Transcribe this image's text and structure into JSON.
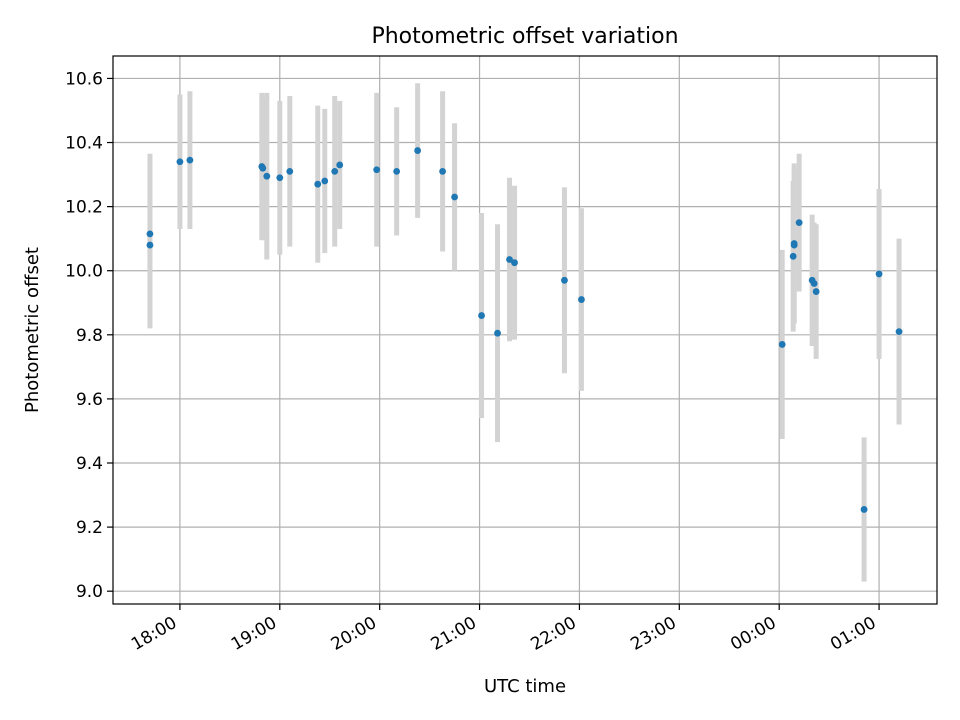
{
  "chart_data": {
    "type": "scatter",
    "title": "Photometric offset variation",
    "xlabel": "UTC time",
    "ylabel": "Photometric offset",
    "x_unit": "hours UTC",
    "xlim": [
      17.33,
      25.58
    ],
    "ylim": [
      8.96,
      10.67
    ],
    "x_ticks": [
      18,
      19,
      20,
      21,
      22,
      23,
      24,
      25
    ],
    "x_tick_labels": [
      "18:00",
      "19:00",
      "20:00",
      "21:00",
      "22:00",
      "23:00",
      "00:00",
      "01:00"
    ],
    "y_ticks": [
      9.0,
      9.2,
      9.4,
      9.6,
      9.8,
      10.0,
      10.2,
      10.4,
      10.6
    ],
    "y_tick_labels": [
      "9.0",
      "9.2",
      "9.4",
      "9.6",
      "9.8",
      "10.0",
      "10.2",
      "10.4",
      "10.6"
    ],
    "grid": true,
    "point_color": "#1f77b4",
    "errorbar_color": "#d3d3d3",
    "points": [
      {
        "x": 17.7,
        "y": 10.115,
        "err": 0.25
      },
      {
        "x": 17.7,
        "y": 10.08,
        "err": 0.26
      },
      {
        "x": 18.0,
        "y": 10.34,
        "err": 0.21
      },
      {
        "x": 18.1,
        "y": 10.345,
        "err": 0.215
      },
      {
        "x": 18.82,
        "y": 10.325,
        "err": 0.23
      },
      {
        "x": 18.83,
        "y": 10.32,
        "err": 0.22
      },
      {
        "x": 18.87,
        "y": 10.295,
        "err": 0.26
      },
      {
        "x": 19.0,
        "y": 10.29,
        "err": 0.24
      },
      {
        "x": 19.1,
        "y": 10.31,
        "err": 0.235
      },
      {
        "x": 19.38,
        "y": 10.27,
        "err": 0.245
      },
      {
        "x": 19.45,
        "y": 10.28,
        "err": 0.225
      },
      {
        "x": 19.55,
        "y": 10.31,
        "err": 0.235
      },
      {
        "x": 19.6,
        "y": 10.33,
        "err": 0.2
      },
      {
        "x": 19.97,
        "y": 10.315,
        "err": 0.24
      },
      {
        "x": 20.17,
        "y": 10.31,
        "err": 0.2
      },
      {
        "x": 20.38,
        "y": 10.375,
        "err": 0.21
      },
      {
        "x": 20.63,
        "y": 10.31,
        "err": 0.25
      },
      {
        "x": 20.75,
        "y": 10.23,
        "err": 0.23
      },
      {
        "x": 21.02,
        "y": 9.86,
        "err": 0.32
      },
      {
        "x": 21.18,
        "y": 9.805,
        "err": 0.34
      },
      {
        "x": 21.3,
        "y": 10.035,
        "err": 0.255
      },
      {
        "x": 21.35,
        "y": 10.025,
        "err": 0.24
      },
      {
        "x": 21.85,
        "y": 9.97,
        "err": 0.29
      },
      {
        "x": 22.02,
        "y": 9.91,
        "err": 0.285
      },
      {
        "x": 24.03,
        "y": 9.77,
        "err": 0.295
      },
      {
        "x": 24.15,
        "y": 10.085,
        "err": 0.25
      },
      {
        "x": 24.15,
        "y": 10.08,
        "err": 0.24
      },
      {
        "x": 24.14,
        "y": 10.045,
        "err": 0.235
      },
      {
        "x": 24.2,
        "y": 10.15,
        "err": 0.215
      },
      {
        "x": 24.33,
        "y": 9.97,
        "err": 0.205
      },
      {
        "x": 24.35,
        "y": 9.96,
        "err": 0.19
      },
      {
        "x": 24.37,
        "y": 9.935,
        "err": 0.21
      },
      {
        "x": 24.85,
        "y": 9.255,
        "err": 0.225
      },
      {
        "x": 25.0,
        "y": 9.99,
        "err": 0.265
      },
      {
        "x": 25.2,
        "y": 9.81,
        "err": 0.29
      }
    ]
  }
}
